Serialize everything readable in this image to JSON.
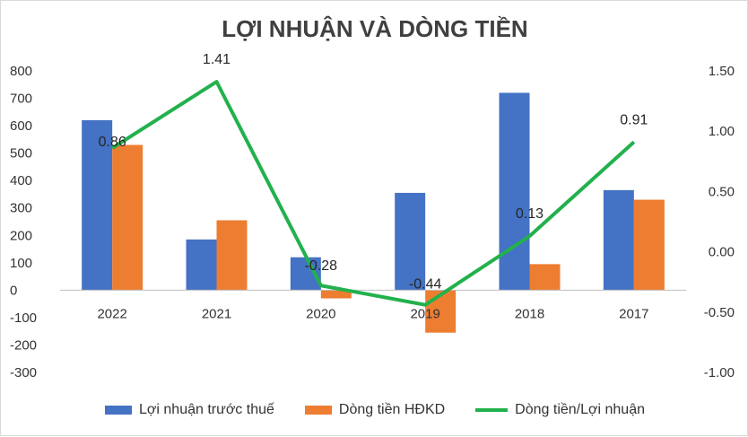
{
  "chart_data": {
    "type": "bar",
    "title": "LỢI NHUẬN VÀ DÒNG TIỀN",
    "categories": [
      "2022",
      "2021",
      "2020",
      "2019",
      "2018",
      "2017"
    ],
    "series": [
      {
        "name": "Lợi nhuận trước thuế",
        "type": "bar",
        "axis": "left",
        "color": "#4472C4",
        "values": [
          620,
          185,
          120,
          355,
          720,
          365
        ]
      },
      {
        "name": "Dòng tiền HĐKD",
        "type": "bar",
        "axis": "left",
        "color": "#ED7D31",
        "values": [
          530,
          255,
          -30,
          -155,
          95,
          330
        ]
      },
      {
        "name": "Dòng tiền/Lợi nhuận",
        "type": "line",
        "axis": "right",
        "color": "#22B14C",
        "values": [
          0.86,
          1.41,
          -0.28,
          -0.44,
          0.13,
          0.91
        ],
        "labels": [
          "0.86",
          "1.41",
          "-0.28",
          "-0.44",
          "0.13",
          "0.91"
        ]
      }
    ],
    "y_left": {
      "min": -300,
      "max": 800,
      "ticks": [
        "800",
        "700",
        "600",
        "500",
        "400",
        "300",
        "200",
        "100",
        "0",
        "-100",
        "-200",
        "-300"
      ]
    },
    "y_right": {
      "min": -1.0,
      "max": 1.5,
      "ticks": [
        "1.50",
        "1.00",
        "0.50",
        "0.00",
        "-0.50",
        "-1.00"
      ]
    },
    "grid": false,
    "legend_position": "bottom"
  }
}
